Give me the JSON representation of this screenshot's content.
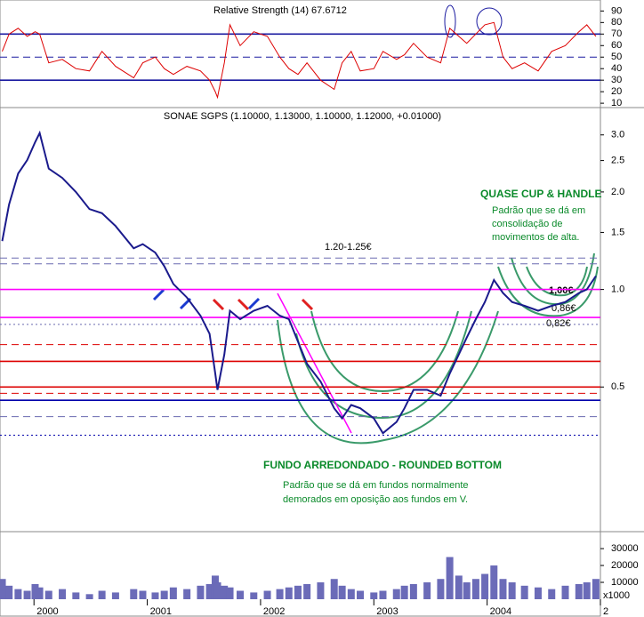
{
  "chart_data": [
    {
      "type": "line",
      "title": "Relative Strength (14) 67.6712",
      "color": "#dd0000",
      "x": [
        1999.72,
        1999.78,
        1999.86,
        1999.94,
        2000.01,
        2000.05,
        2000.13,
        2000.25,
        2000.37,
        2000.49,
        2000.6,
        2000.72,
        2000.88,
        2000.96,
        2001.07,
        2001.15,
        2001.23,
        2001.35,
        2001.47,
        2001.55,
        2001.6,
        2001.62,
        2001.68,
        2001.73,
        2001.82,
        2001.94,
        2002.06,
        2002.17,
        2002.25,
        2002.33,
        2002.41,
        2002.53,
        2002.65,
        2002.72,
        2002.8,
        2002.88,
        2003.0,
        2003.08,
        2003.2,
        2003.27,
        2003.35,
        2003.47,
        2003.59,
        2003.67,
        2003.75,
        2003.82,
        2003.9,
        2003.98,
        2004.06,
        2004.14,
        2004.22,
        2004.33,
        2004.45,
        2004.57,
        2004.69,
        2004.81,
        2004.88,
        2004.96
      ],
      "values": [
        55,
        70,
        75,
        68,
        72,
        70,
        45,
        48,
        40,
        38,
        55,
        42,
        32,
        45,
        50,
        40,
        35,
        42,
        38,
        30,
        20,
        15,
        45,
        78,
        60,
        72,
        68,
        50,
        40,
        35,
        45,
        30,
        22,
        45,
        55,
        38,
        40,
        55,
        48,
        52,
        62,
        50,
        45,
        75,
        68,
        62,
        70,
        78,
        80,
        50,
        40,
        45,
        38,
        55,
        60,
        72,
        78,
        68
      ],
      "xlim": [
        1999.7,
        2005.0
      ],
      "ylim": [
        7,
        98
      ],
      "yticks": [
        10,
        20,
        30,
        40,
        50,
        60,
        70,
        80,
        90
      ],
      "levels": [
        {
          "value": 70,
          "color": "#1a1aa0",
          "style": "solid"
        },
        {
          "value": 50,
          "color": "#1a1aa0",
          "style": "dashed"
        },
        {
          "value": 30,
          "color": "#1a1aa0",
          "style": "solid"
        }
      ]
    },
    {
      "type": "line",
      "title": "SONAE SGPS (1.10000, 1.13000, 1.10000, 1.12000, +0.01000)",
      "color": "#1a1a8c",
      "log_scale": true,
      "x": [
        1999.72,
        1999.78,
        1999.86,
        1999.94,
        2000.01,
        2000.05,
        2000.13,
        2000.25,
        2000.37,
        2000.49,
        2000.6,
        2000.72,
        2000.88,
        2000.96,
        2001.07,
        2001.15,
        2001.23,
        2001.35,
        2001.47,
        2001.55,
        2001.6,
        2001.62,
        2001.68,
        2001.73,
        2001.82,
        2001.94,
        2002.06,
        2002.17,
        2002.25,
        2002.33,
        2002.41,
        2002.53,
        2002.65,
        2002.72,
        2002.8,
        2002.88,
        2003.0,
        2003.08,
        2003.2,
        2003.27,
        2003.35,
        2003.47,
        2003.59,
        2003.67,
        2003.75,
        2003.82,
        2003.9,
        2003.98,
        2004.06,
        2004.14,
        2004.22,
        2004.33,
        2004.45,
        2004.57,
        2004.69,
        2004.81,
        2004.88,
        2004.96
      ],
      "values": [
        1.41,
        1.83,
        2.28,
        2.51,
        2.85,
        3.04,
        2.36,
        2.21,
        2.0,
        1.77,
        1.72,
        1.57,
        1.34,
        1.38,
        1.3,
        1.18,
        1.04,
        0.945,
        0.83,
        0.73,
        0.55,
        0.49,
        0.63,
        0.86,
        0.81,
        0.86,
        0.89,
        0.83,
        0.81,
        0.69,
        0.59,
        0.52,
        0.43,
        0.4,
        0.44,
        0.43,
        0.4,
        0.36,
        0.39,
        0.43,
        0.49,
        0.49,
        0.47,
        0.55,
        0.63,
        0.71,
        0.81,
        0.915,
        1.07,
        0.975,
        0.915,
        0.89,
        0.86,
        0.89,
        0.915,
        0.975,
        1.0,
        1.1
      ],
      "xlim": [
        1999.7,
        2005.0
      ],
      "ylim": [
        0.18,
        3.62
      ],
      "yticks": [
        0.5,
        {
          "value": 1,
          "label": "1.0"
        },
        1.5,
        {
          "value": 2,
          "label": "2.0"
        },
        2.5,
        {
          "value": 3,
          "label": "3.0"
        }
      ],
      "levels": [
        {
          "value": 1.25,
          "color": "#6a6ab0",
          "style": "dashed"
        },
        {
          "value": 1.2,
          "color": "#6a6ab0",
          "style": "dashed"
        },
        {
          "value": 1.0,
          "color": "#ff00ff",
          "style": "solid"
        },
        {
          "value": 0.82,
          "color": "#ff00ff",
          "style": "solid"
        },
        {
          "value": 0.78,
          "color": "#6a6ab0",
          "style": "dotted"
        },
        {
          "value": 0.676,
          "color": "#dd0000",
          "style": "dashed"
        },
        {
          "value": 0.6,
          "color": "#dd0000",
          "style": "solid"
        },
        {
          "value": 0.5,
          "color": "#dd0000",
          "style": "solid"
        },
        {
          "value": 0.478,
          "color": "#dd0000",
          "style": "dashed"
        },
        {
          "value": 0.455,
          "color": "#0000aa",
          "style": "solid"
        },
        {
          "value": 0.405,
          "color": "#6a6ab0",
          "style": "dashed"
        },
        {
          "value": 0.355,
          "color": "#0000aa",
          "style": "dotted"
        }
      ],
      "annotations": {
        "resistance": "1.20-1.25€",
        "cup_title": "QUASE CUP & HANDLE",
        "cup_note": [
          "Padrão que se dá em",
          "consolidação de",
          "movimentos de alta."
        ],
        "bottom_title": "FUNDO ARREDONDADO - ROUNDED BOTTOM",
        "bottom_note": [
          "Padrão que se dá em fundos normalmente",
          "demorados em oposição aos fundos em V."
        ],
        "level_a": "1,00€",
        "level_b": "0,86€",
        "level_c": "0,82€"
      }
    },
    {
      "type": "bar",
      "color": "#6b6bb8",
      "unit_label": "x1000",
      "x": [
        1999.72,
        1999.78,
        1999.86,
        1999.94,
        2000.01,
        2000.05,
        2000.13,
        2000.25,
        2000.37,
        2000.49,
        2000.6,
        2000.72,
        2000.88,
        2000.96,
        2001.07,
        2001.15,
        2001.23,
        2001.35,
        2001.47,
        2001.55,
        2001.6,
        2001.62,
        2001.68,
        2001.73,
        2001.82,
        2001.94,
        2002.06,
        2002.17,
        2002.25,
        2002.33,
        2002.41,
        2002.53,
        2002.65,
        2002.72,
        2002.8,
        2002.88,
        2003.0,
        2003.08,
        2003.2,
        2003.27,
        2003.35,
        2003.47,
        2003.59,
        2003.67,
        2003.75,
        2003.82,
        2003.9,
        2003.98,
        2004.06,
        2004.14,
        2004.22,
        2004.33,
        2004.45,
        2004.57,
        2004.69,
        2004.81,
        2004.88,
        2004.96
      ],
      "values": [
        12000,
        8000,
        6000,
        5000,
        9000,
        7000,
        5000,
        6000,
        4000,
        3000,
        5000,
        4000,
        6000,
        5000,
        4000,
        5000,
        7000,
        6000,
        8000,
        9000,
        14000,
        10000,
        8000,
        7000,
        5000,
        4000,
        5000,
        6000,
        7000,
        8000,
        9000,
        10000,
        12000,
        8000,
        6000,
        5000,
        4000,
        5000,
        6000,
        8000,
        9000,
        10000,
        12000,
        25000,
        14000,
        10000,
        12000,
        15000,
        20000,
        12000,
        10000,
        8000,
        7000,
        6000,
        8000,
        9000,
        10000,
        12000
      ],
      "xlim": [
        1999.7,
        2005.0
      ],
      "ylim": [
        0,
        39000
      ],
      "yticks": [
        10000,
        20000,
        30000
      ],
      "xticks": [
        2000,
        2001,
        2002,
        2003,
        2004,
        {
          "value": 2005,
          "label": "2"
        }
      ]
    }
  ]
}
